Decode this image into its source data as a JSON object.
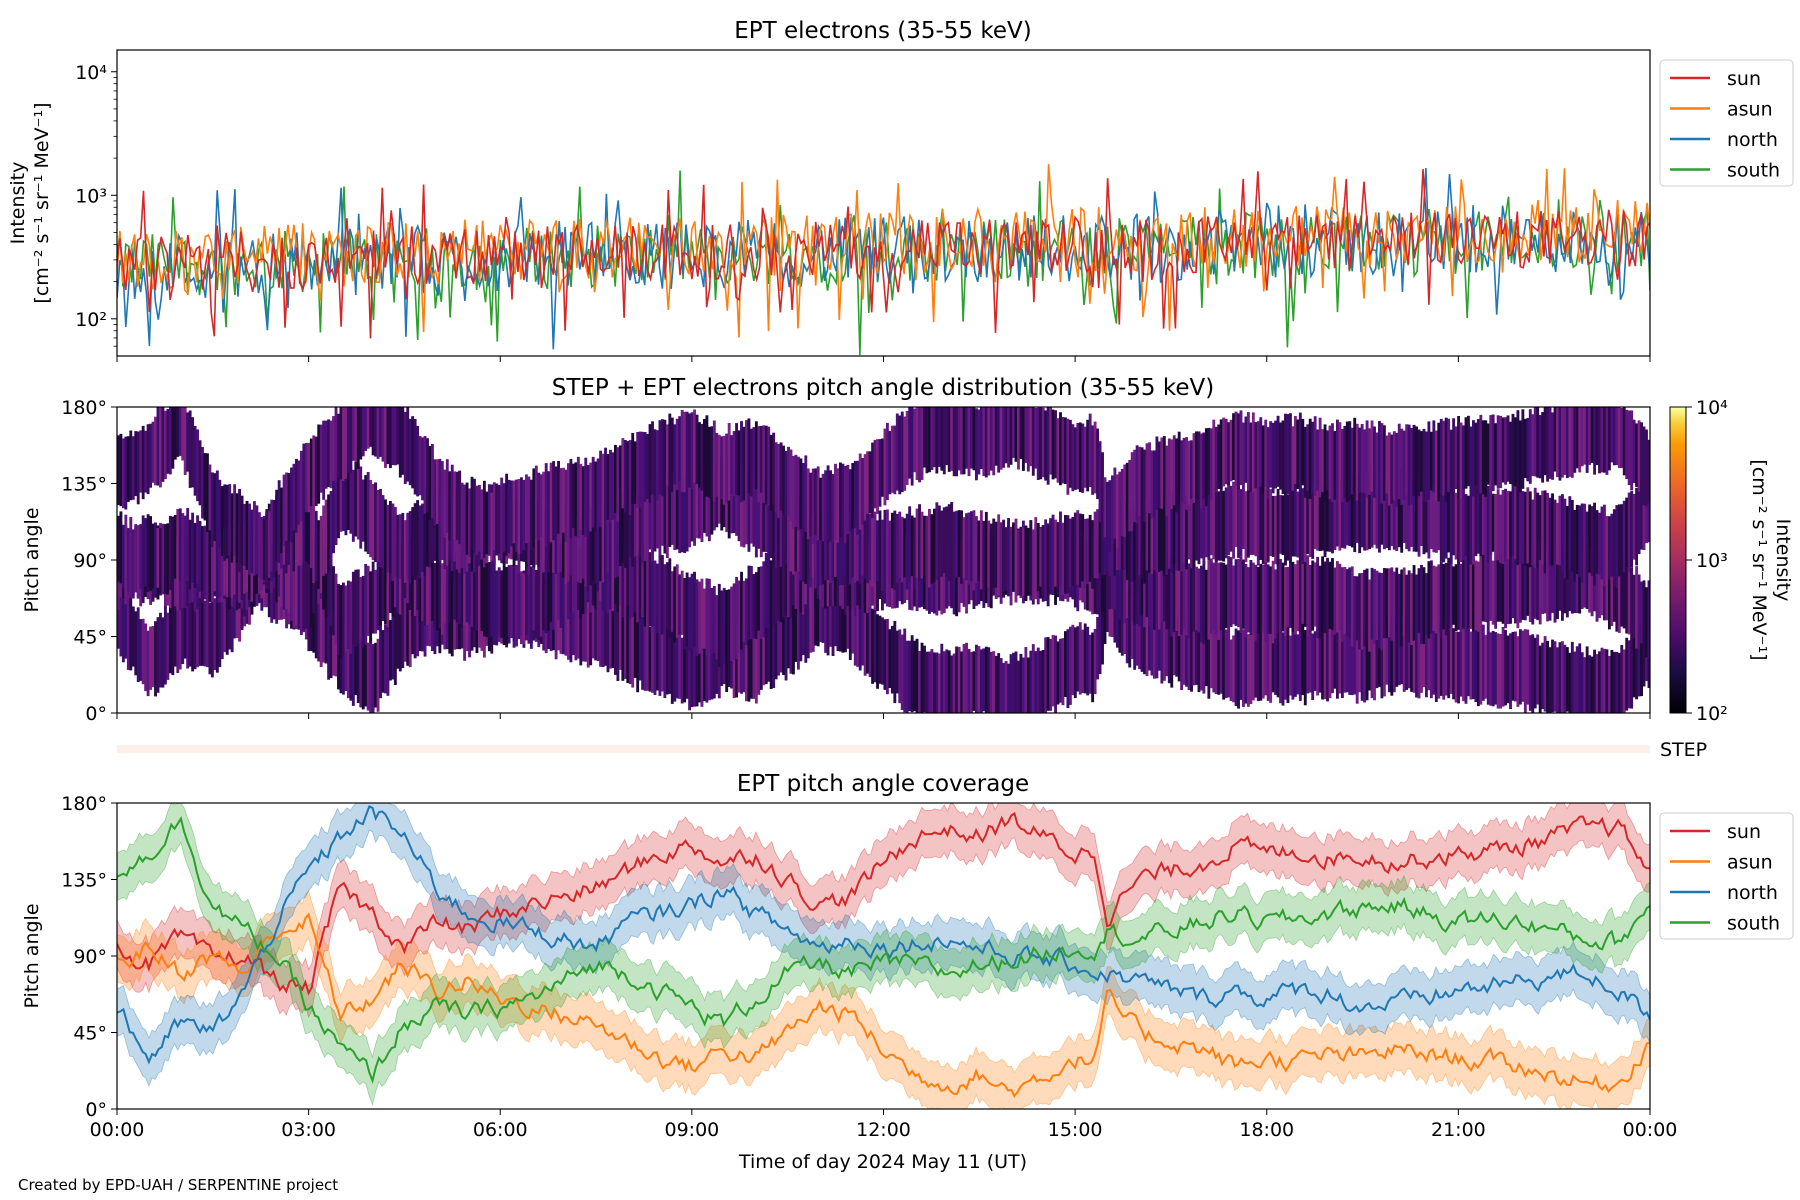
{
  "credit": "Created by EPD-UAH / SERPENTINE project",
  "colors": {
    "sun": "#d62728",
    "asun": "#ff7f0e",
    "north": "#1f77b4",
    "south": "#2ca02c"
  },
  "chart_data": [
    {
      "type": "line",
      "title": "EPT electrons (35-55 keV)",
      "ylabel_line1": "Intensity",
      "ylabel_line2": "[cm⁻² s⁻¹ sr⁻¹ MeV⁻¹]",
      "yscale": "log",
      "ylim": [
        50,
        15000
      ],
      "yticks": [
        {
          "value": 100,
          "label": "10²"
        },
        {
          "value": 1000,
          "label": "10³"
        },
        {
          "value": 10000,
          "label": "10⁴"
        }
      ],
      "xlim_hours": [
        0,
        24
      ],
      "legend_position": "outside-right-top",
      "series": [
        {
          "name": "sun",
          "key": "sun",
          "level_start": 280,
          "level_end": 450,
          "spread": 0.55
        },
        {
          "name": "asun",
          "key": "asun",
          "level_start": 300,
          "level_end": 520,
          "spread": 0.6
        },
        {
          "name": "north",
          "key": "north",
          "level_start": 260,
          "level_end": 450,
          "spread": 0.65
        },
        {
          "name": "south",
          "key": "south",
          "level_start": 270,
          "level_end": 430,
          "spread": 0.6
        }
      ]
    },
    {
      "type": "heatmap",
      "title": "STEP + EPT electrons pitch angle distribution (35-55 keV)",
      "ylabel": "Pitch angle",
      "ylim": [
        0,
        180
      ],
      "yticks": [
        "0°",
        "45°",
        "90°",
        "135°",
        "180°"
      ],
      "xlim_hours": [
        0,
        24
      ],
      "colorbar": {
        "scale": "log",
        "range": [
          100,
          10000
        ],
        "ticks": [
          {
            "value": 100,
            "label": "10²"
          },
          {
            "value": 1000,
            "label": "10³"
          },
          {
            "value": 10000,
            "label": "10⁴"
          }
        ],
        "label_line1": "Intensity",
        "label_line2": "[cm⁻² s⁻¹ sr⁻¹ MeV⁻¹]"
      }
    },
    {
      "type": "bar",
      "label": "STEP",
      "coverage": "full",
      "color": "#fdf0eb"
    },
    {
      "type": "line",
      "title": "EPT pitch angle coverage",
      "ylabel": "Pitch angle",
      "xlabel": "Time of day 2024 May 11 (UT)",
      "ylim": [
        0,
        180
      ],
      "yticks": [
        "0°",
        "45°",
        "90°",
        "135°",
        "180°"
      ],
      "xticks": [
        "00:00",
        "03:00",
        "06:00",
        "09:00",
        "12:00",
        "15:00",
        "18:00",
        "21:00",
        "00:00"
      ],
      "xlim_hours": [
        0,
        24
      ],
      "legend_position": "outside-right-top",
      "band_halfwidth_deg": 14,
      "series": [
        {
          "name": "sun",
          "key": "sun",
          "x": [
            0,
            0.5,
            1,
            1.5,
            2,
            2.5,
            3,
            3.5,
            4,
            4.5,
            5,
            5.5,
            6,
            6.5,
            7,
            7.5,
            8,
            8.5,
            9,
            9.5,
            10,
            10.5,
            11,
            11.5,
            12,
            12.5,
            13,
            13.5,
            14,
            14.5,
            15,
            15.3,
            15.5,
            16,
            16.5,
            17,
            17.5,
            18,
            18.5,
            19,
            19.5,
            20,
            20.5,
            21,
            21.5,
            22,
            22.5,
            23,
            23.5,
            24
          ],
          "y": [
            95,
            85,
            100,
            88,
            90,
            75,
            70,
            130,
            115,
            95,
            110,
            105,
            115,
            120,
            125,
            130,
            140,
            150,
            155,
            145,
            150,
            135,
            120,
            125,
            145,
            160,
            165,
            160,
            170,
            160,
            150,
            152,
            115,
            135,
            140,
            145,
            155,
            150,
            152,
            148,
            150,
            145,
            148,
            150,
            152,
            155,
            160,
            165,
            165,
            140
          ]
        },
        {
          "name": "asun",
          "key": "asun",
          "x": [
            0,
            0.5,
            1,
            1.5,
            2,
            2.5,
            3,
            3.5,
            4,
            4.5,
            5,
            5.5,
            6,
            6.5,
            7,
            7.5,
            8,
            8.5,
            9,
            9.5,
            10,
            10.5,
            11,
            11.5,
            12,
            12.5,
            13,
            13.5,
            14,
            14.5,
            15,
            15.3,
            15.5,
            16,
            16.5,
            17,
            17.5,
            18,
            18.5,
            19,
            19.5,
            20,
            20.5,
            21,
            21.5,
            22,
            22.5,
            23,
            23.5,
            24
          ],
          "y": [
            85,
            95,
            80,
            90,
            80,
            105,
            110,
            55,
            65,
            85,
            70,
            75,
            65,
            60,
            55,
            50,
            40,
            30,
            25,
            35,
            30,
            45,
            60,
            55,
            35,
            20,
            15,
            20,
            10,
            20,
            30,
            28,
            65,
            45,
            40,
            35,
            25,
            30,
            28,
            32,
            30,
            35,
            32,
            30,
            28,
            25,
            20,
            15,
            15,
            40
          ]
        },
        {
          "name": "north",
          "key": "north",
          "x": [
            0,
            0.5,
            1,
            1.5,
            2,
            2.5,
            3,
            3.5,
            4,
            4.5,
            5,
            5.5,
            6,
            6.5,
            7,
            7.5,
            8,
            8.5,
            9,
            9.5,
            10,
            10.5,
            11,
            11.5,
            12,
            12.5,
            13,
            13.5,
            14,
            14.5,
            15,
            15.3,
            15.5,
            16,
            16.5,
            17,
            17.5,
            18,
            18.5,
            19,
            19.5,
            20,
            20.5,
            21,
            21.5,
            22,
            22.5,
            23,
            23.5,
            24
          ],
          "y": [
            60,
            30,
            50,
            45,
            70,
            110,
            140,
            160,
            175,
            160,
            130,
            115,
            110,
            105,
            100,
            95,
            110,
            115,
            120,
            130,
            115,
            105,
            95,
            100,
            95,
            98,
            100,
            95,
            90,
            88,
            85,
            80,
            80,
            75,
            70,
            65,
            70,
            65,
            70,
            68,
            60,
            62,
            65,
            70,
            72,
            75,
            78,
            80,
            70,
            55
          ]
        },
        {
          "name": "south",
          "key": "south",
          "x": [
            0,
            0.5,
            1,
            1.5,
            2,
            2.5,
            3,
            3.5,
            4,
            4.5,
            5,
            5.5,
            6,
            6.5,
            7,
            7.5,
            8,
            8.5,
            9,
            9.5,
            10,
            10.5,
            11,
            11.5,
            12,
            12.5,
            13,
            13.5,
            14,
            14.5,
            15,
            15.3,
            15.5,
            16,
            16.5,
            17,
            17.5,
            18,
            18.5,
            19,
            19.5,
            20,
            20.5,
            21,
            21.5,
            22,
            22.5,
            23,
            23.5,
            24
          ],
          "y": [
            140,
            150,
            170,
            120,
            105,
            90,
            60,
            35,
            20,
            50,
            60,
            55,
            60,
            65,
            75,
            85,
            80,
            70,
            60,
            50,
            65,
            80,
            85,
            80,
            85,
            85,
            80,
            85,
            88,
            92,
            95,
            96,
            105,
            100,
            105,
            110,
            115,
            110,
            112,
            115,
            118,
            120,
            115,
            110,
            112,
            110,
            105,
            100,
            98,
            120
          ]
        }
      ]
    }
  ]
}
